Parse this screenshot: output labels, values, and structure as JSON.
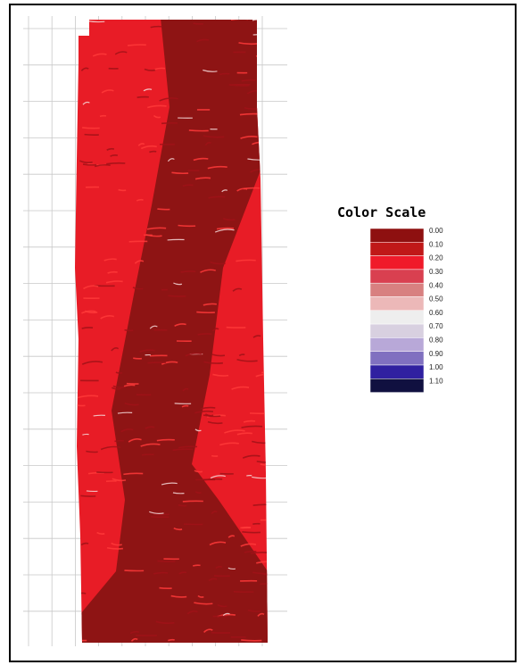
{
  "legend": {
    "title": "Color Scale",
    "labels": [
      "0.00",
      "0.10",
      "0.20",
      "0.30",
      "0.40",
      "0.50",
      "0.60",
      "0.70",
      "0.80",
      "0.90",
      "1.00",
      "1.10"
    ],
    "colors": [
      "#8e1010",
      "#c01818",
      "#f01a2a",
      "#d94050",
      "#d88080",
      "#ecb8b8",
      "#eeeeee",
      "#d8d0e0",
      "#b8a8d8",
      "#8070c0",
      "#3020a0",
      "#101040"
    ]
  }
}
